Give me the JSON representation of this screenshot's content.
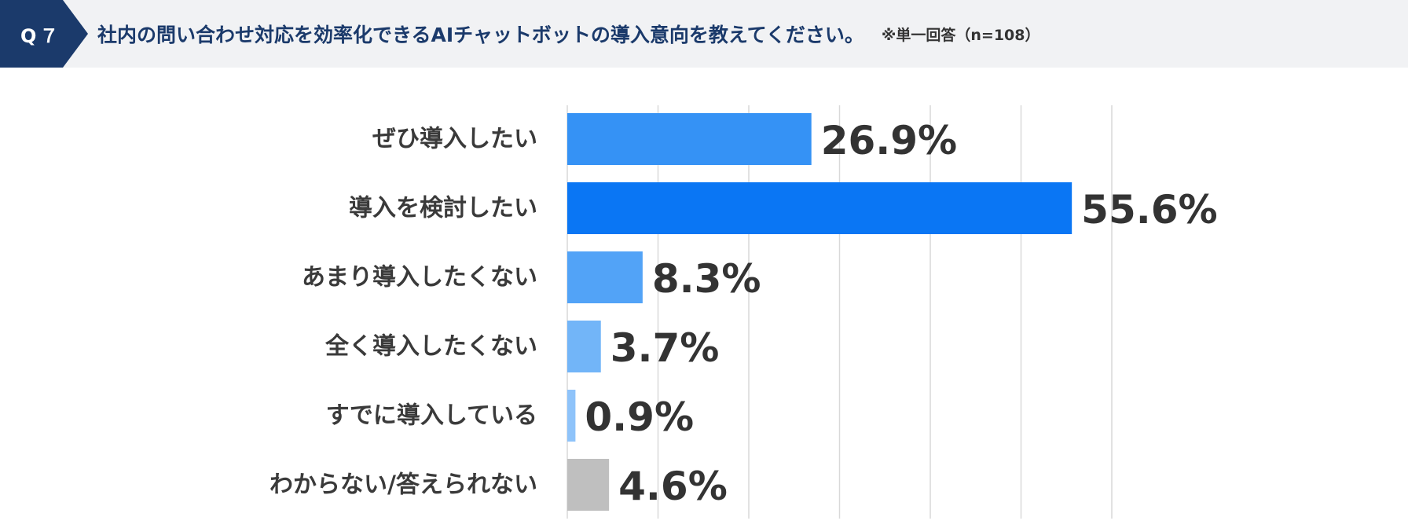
{
  "header": {
    "badge": "Q７",
    "question": "社内の問い合わせ対応を効率化できるAIチャットボットの導入意向を教えてください。",
    "note": "※単一回答（n=108）"
  },
  "chart_data": {
    "type": "bar",
    "orientation": "horizontal",
    "categories": [
      "ぜひ導入したい",
      "導入を検討したい",
      "あまり導入したくない",
      "全く導入したくない",
      "すでに導入している",
      "わからない/答えられない"
    ],
    "values": [
      26.9,
      55.6,
      8.3,
      3.7,
      0.9,
      4.6
    ],
    "value_labels": [
      "26.9%",
      "55.6%",
      "8.3%",
      "3.7%",
      "0.9%",
      "4.6%"
    ],
    "colors": [
      "#3592f5",
      "#0a76f4",
      "#52a3f7",
      "#72b5f8",
      "#8ec3fa",
      "#bfbfbf"
    ],
    "xlim": [
      0,
      60
    ],
    "grid": true,
    "gridline_color": "#d9d9d9"
  }
}
